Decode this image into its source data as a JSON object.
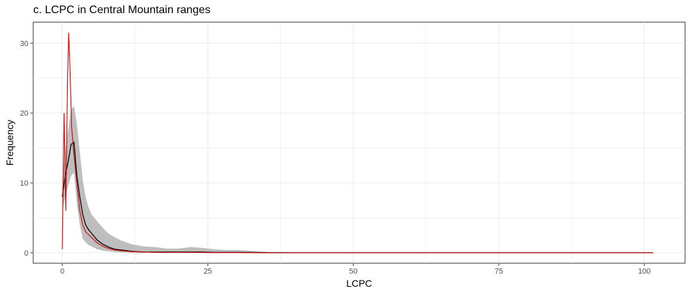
{
  "chart_data": {
    "type": "line",
    "title": "c. LCPC in Central Mountain ranges",
    "xlabel": "LCPC",
    "ylabel": "Frequency",
    "xlim": [
      -5,
      107
    ],
    "ylim": [
      -1.5,
      33
    ],
    "x_ticks": [
      "0",
      "25",
      "50",
      "75",
      "100"
    ],
    "y_ticks": [
      "0",
      "10",
      "20",
      "30"
    ],
    "x_tick_values": [
      0,
      25,
      50,
      75,
      100
    ],
    "y_tick_values": [
      0,
      10,
      20,
      30
    ],
    "grid": true,
    "legend": "none",
    "colors": {
      "observed": "#cc0000",
      "mean": "#000000",
      "band": "#bebebe",
      "grid": "#ebebeb"
    },
    "series": [
      {
        "x": [
          0,
          0.3,
          0.6,
          0.9,
          1.1,
          1.3,
          1.6,
          2,
          2.5,
          3,
          3.5,
          4,
          4.5,
          5,
          6,
          7,
          8,
          9,
          10,
          12,
          14,
          16,
          18,
          20,
          22,
          24,
          26,
          28,
          30,
          32,
          34,
          36,
          40,
          50,
          60,
          70,
          80,
          90,
          101.5
        ],
        "y": [
          0.5,
          20,
          6,
          25,
          31.5,
          27,
          18,
          14,
          10,
          6,
          4,
          3,
          2.6,
          2.2,
          1.4,
          0.9,
          0.6,
          0.4,
          0.3,
          0.15,
          0.1,
          0.05,
          0.05,
          0.05,
          0.05,
          0.03,
          0.02,
          0.02,
          0.02,
          0.01,
          0.01,
          0,
          0,
          0,
          0,
          0,
          0,
          0,
          0
        ]
      },
      {
        "x": [
          0,
          0.5,
          1,
          1.5,
          2,
          2.5,
          3,
          3.5,
          4,
          4.5,
          5,
          6,
          7,
          8,
          9,
          10,
          12,
          14,
          16,
          18,
          20,
          22,
          24,
          26,
          28,
          30,
          32,
          34,
          36,
          40,
          50,
          60,
          70,
          80,
          90,
          101.5
        ],
        "y": [
          8,
          11,
          13,
          15.5,
          15.8,
          11,
          8,
          5.5,
          4,
          3.3,
          2.8,
          1.8,
          1.2,
          0.8,
          0.5,
          0.4,
          0.2,
          0.1,
          0.1,
          0.1,
          0.1,
          0.1,
          0.1,
          0.05,
          0.05,
          0.05,
          0.05,
          0.02,
          0.01,
          0,
          0,
          0,
          0,
          0,
          0,
          0
        ],
        "upper": [
          10.5,
          14.5,
          17.5,
          20.5,
          21,
          18.5,
          14.5,
          10.5,
          8,
          6.5,
          5.5,
          4.5,
          3.5,
          2.7,
          2.2,
          1.8,
          1.2,
          0.9,
          0.8,
          0.6,
          0.6,
          0.8,
          0.7,
          0.5,
          0.4,
          0.4,
          0.3,
          0.2,
          0.05,
          0,
          0,
          0,
          0,
          0,
          0,
          0
        ],
        "lower": [
          6,
          8,
          9.5,
          11,
          11.5,
          7,
          4,
          2,
          1.5,
          1.1,
          0.9,
          0.5,
          0.3,
          0.2,
          0.1,
          0.05,
          0,
          0,
          0,
          0,
          0,
          0,
          0,
          0,
          0,
          0,
          0,
          0,
          0,
          0,
          0,
          0,
          0,
          0,
          0,
          0
        ]
      }
    ]
  }
}
